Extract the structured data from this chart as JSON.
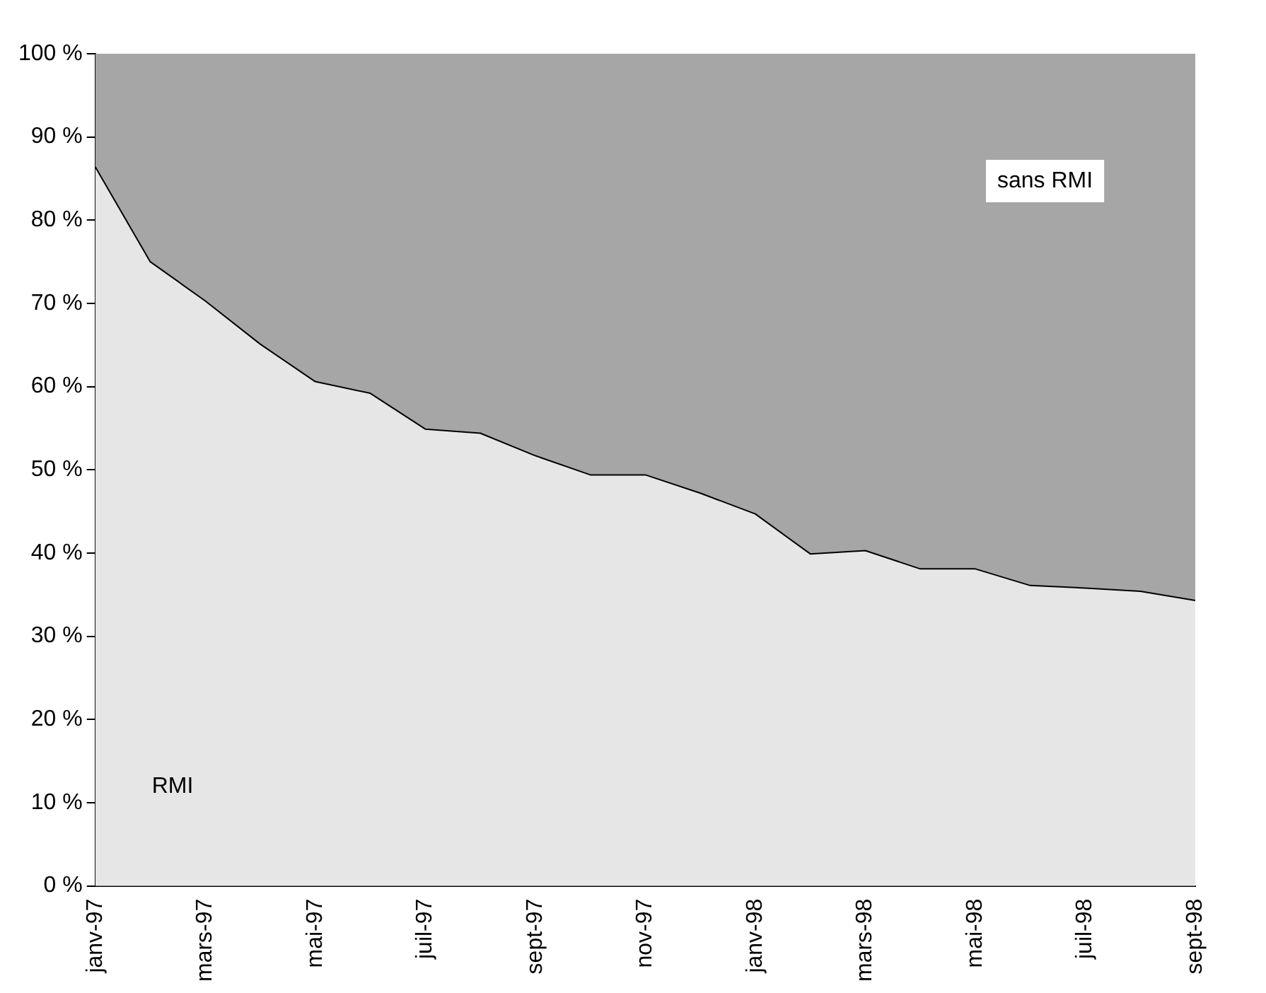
{
  "chart_data": {
    "type": "area",
    "stacked": true,
    "categories": [
      "janv-97",
      null,
      "mars-97",
      null,
      "mai-97",
      null,
      "juil-97",
      null,
      "sept-97",
      null,
      "nov-97",
      null,
      "janv-98",
      null,
      "mars-98",
      null,
      "mai-98",
      null,
      "juil-98",
      null,
      "sept-98"
    ],
    "series": [
      {
        "name": "RMI",
        "color": "#e6e6e6",
        "values": [
          86.4,
          75,
          70.3,
          65.1,
          60.6,
          59.2,
          54.9,
          54.4,
          51.7,
          49.4,
          49.4,
          47.2,
          44.7,
          39.9,
          40.3,
          38.1,
          38.1,
          36.1,
          35.8,
          35.4,
          34.3
        ]
      },
      {
        "name": "sans RMI",
        "color": "#a6a6a6",
        "values": [
          13.6,
          25,
          29.7,
          34.9,
          39.4,
          40.8,
          45.1,
          45.6,
          48.3,
          50.6,
          50.6,
          52.8,
          55.3,
          60.1,
          59.7,
          61.9,
          61.9,
          63.9,
          64.2,
          64.6,
          65.7
        ]
      }
    ],
    "ylim": [
      0,
      100
    ],
    "yticks": [
      {
        "value": 0,
        "label": "0 %"
      },
      {
        "value": 10,
        "label": "10 %"
      },
      {
        "value": 20,
        "label": "20 %"
      },
      {
        "value": 30,
        "label": "30 %"
      },
      {
        "value": 40,
        "label": "40 %"
      },
      {
        "value": 50,
        "label": "50 %"
      },
      {
        "value": 60,
        "label": "60 %"
      },
      {
        "value": 70,
        "label": "70 %"
      },
      {
        "value": 80,
        "label": "80 %"
      },
      {
        "value": 90,
        "label": "90 %"
      },
      {
        "value": 100,
        "label": "100 %"
      }
    ],
    "grid": false,
    "legend": false
  }
}
